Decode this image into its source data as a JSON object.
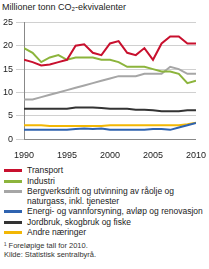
{
  "chart_data": {
    "type": "line",
    "title": "Millioner tonn CO₂-ekvivalenter",
    "x": [
      1990,
      1991,
      1992,
      1993,
      1994,
      1995,
      1996,
      1997,
      1998,
      1999,
      2000,
      2001,
      2002,
      2003,
      2004,
      2005,
      2006,
      2007,
      2008,
      2009,
      2010
    ],
    "xlim": [
      1990,
      2010
    ],
    "xticks": [
      1990,
      1995,
      2000,
      2005,
      2010
    ],
    "ylim": [
      0,
      25
    ],
    "yticks": [
      0,
      5,
      10,
      15,
      20,
      25
    ],
    "grid": true,
    "legend": "bottom",
    "series": [
      {
        "name": "Transport",
        "color": "#c8102e",
        "values": [
          17,
          16.5,
          15.8,
          16,
          16.5,
          17,
          20,
          20.3,
          18.5,
          18,
          20.5,
          21,
          18.5,
          18,
          19.5,
          17,
          20.5,
          22,
          22,
          20.5,
          20.5
        ]
      },
      {
        "name": "Industri",
        "color": "#8cb43c",
        "values": [
          19.5,
          18.5,
          16.5,
          17.5,
          18,
          17,
          17.5,
          17.5,
          17.5,
          17,
          17,
          16.5,
          15.5,
          15.5,
          15.5,
          15,
          14.5,
          14.5,
          14,
          12,
          12.5
        ]
      },
      {
        "name": "Bergverksdrift og utvinning av råolje og naturgass, inkl. tjenester",
        "color": "#a6a6a6",
        "values": [
          8.5,
          8.5,
          9,
          9.5,
          10,
          10.5,
          11,
          11.5,
          12,
          12.5,
          13,
          13.5,
          13.5,
          13.5,
          14,
          14,
          14,
          15.5,
          15,
          14,
          14
        ]
      },
      {
        "name": "Energi- og vannforsyning, avløp og renovasjon",
        "color": "#2f63b0",
        "values": [
          2,
          2,
          2,
          2,
          2,
          2,
          2.2,
          2.3,
          2.2,
          2.3,
          2,
          2,
          2,
          2,
          2,
          2.2,
          2.2,
          2,
          2.5,
          3,
          3.5
        ]
      },
      {
        "name": "Jordbruk, skogbruk og fiske",
        "color": "#333333",
        "values": [
          6.5,
          6.5,
          6.5,
          6.5,
          6.5,
          6.5,
          6.8,
          6.8,
          6.8,
          6.7,
          6.5,
          6.5,
          6.5,
          6.3,
          6.3,
          6.2,
          6,
          6,
          6,
          6.2,
          6.2
        ]
      },
      {
        "name": "Andre næringer",
        "color": "#f2b705",
        "values": [
          3,
          3,
          3,
          2.8,
          2.8,
          2.8,
          2.8,
          2.8,
          2.8,
          2.8,
          3,
          3,
          3,
          3,
          3,
          3,
          3,
          3,
          3,
          3.2,
          3.5
        ]
      }
    ],
    "annotations": [
      "¹ Foreløpige tall for 2010.",
      "Kilde: Statistisk sentralbyrå."
    ]
  }
}
